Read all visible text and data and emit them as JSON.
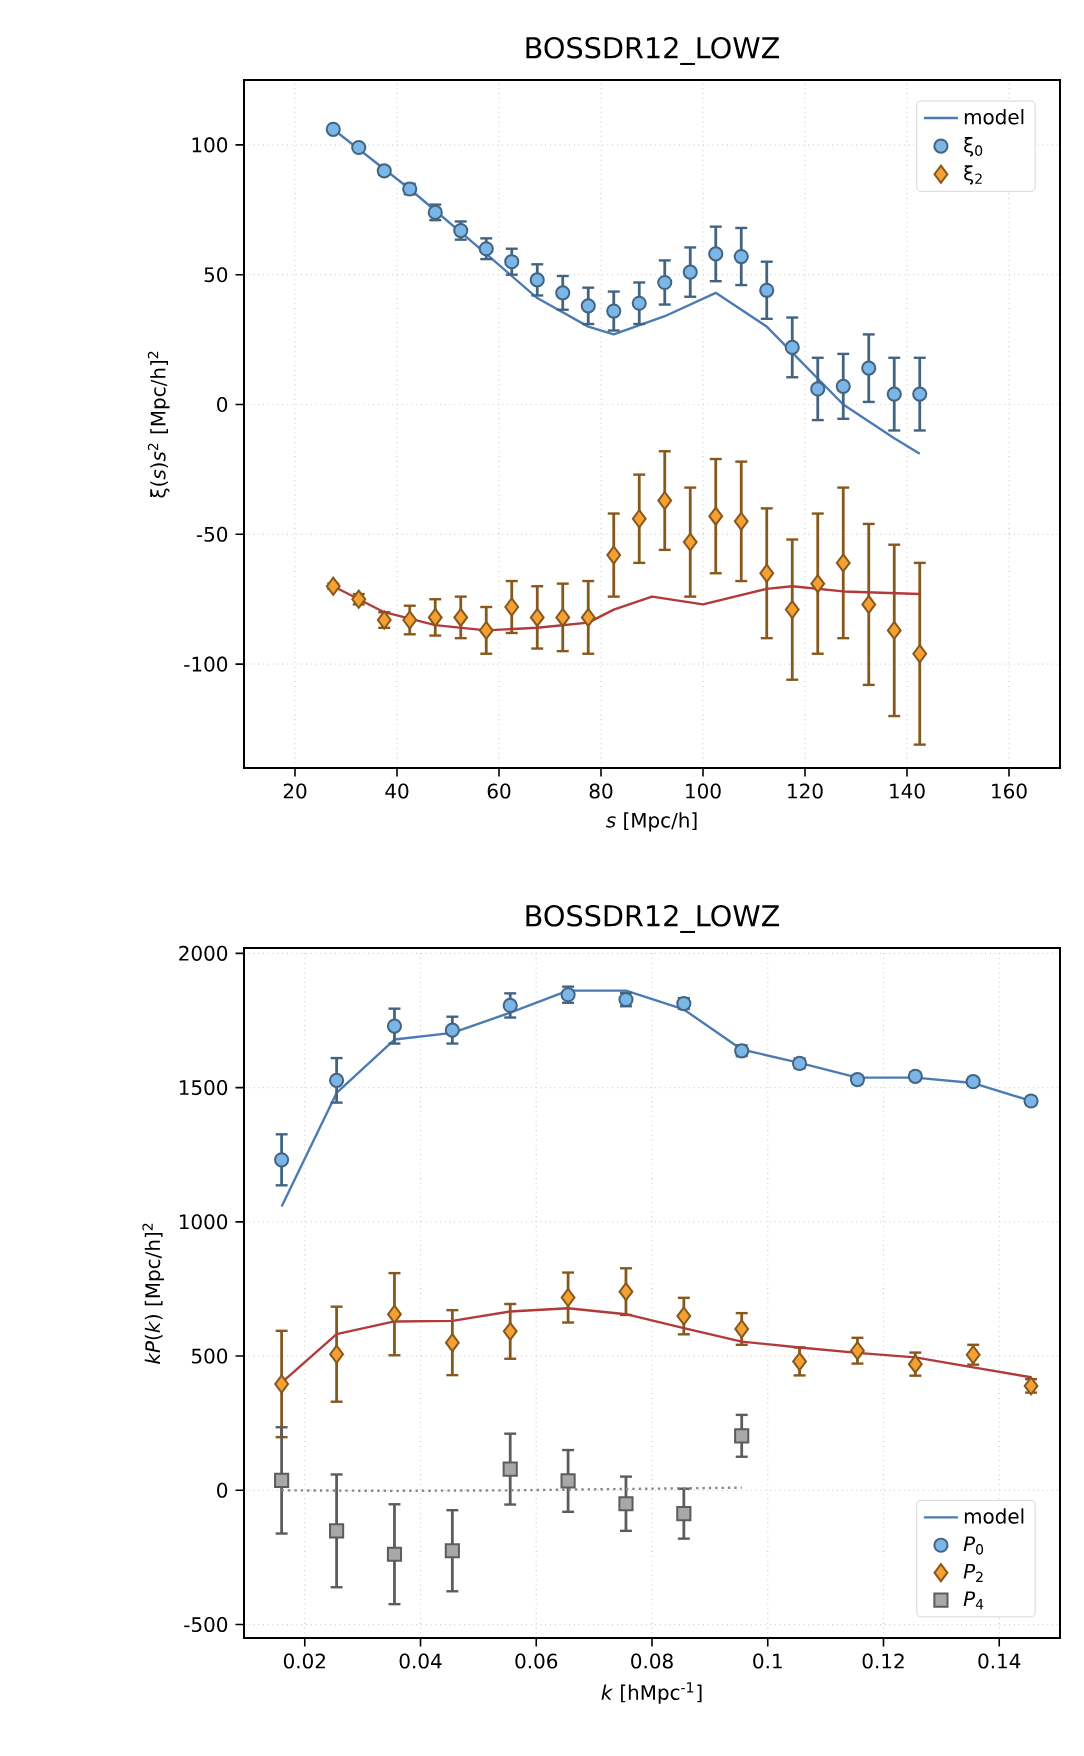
{
  "chart_data": [
    {
      "type": "scatter",
      "title": "BOSSDR12_LOWZ",
      "xlabel": "*s* [Mpc/h]",
      "ylabel": "ξ(*s*)*s*$^{2}$ [Mpc/h]$^{2}$",
      "xlim": [
        10,
        170
      ],
      "ylim": [
        -140,
        125
      ],
      "xticks": [
        20,
        40,
        60,
        80,
        100,
        120,
        140,
        160
      ],
      "yticks": [
        -100,
        -50,
        0,
        50,
        100
      ],
      "grid": true,
      "legend": "top right",
      "series": [
        {
          "name": "model",
          "type": "line",
          "color": "#4c7bb4",
          "line_style": "solid",
          "x": [
            27.5,
            42.5,
            57.5,
            67.5,
            77.5,
            82.5,
            92.5,
            102.5,
            112.5,
            117.5,
            127.5,
            137.5,
            142.5
          ],
          "values": [
            106,
            83,
            58,
            41,
            30,
            27,
            34,
            43,
            30,
            20,
            0,
            -13,
            -19
          ]
        },
        {
          "name": "ξ$_{0}$",
          "marker": "circle",
          "color": "#7ab6e8",
          "x": [
            27.5,
            32.5,
            37.5,
            42.5,
            47.5,
            52.5,
            57.5,
            62.5,
            67.5,
            72.5,
            77.5,
            82.5,
            87.5,
            92.5,
            97.5,
            102.5,
            107.5,
            112.5,
            117.5,
            122.5,
            127.5,
            132.5,
            137.5,
            142.5
          ],
          "values": [
            106,
            99,
            90,
            83,
            74,
            67,
            60,
            55,
            48,
            43,
            38,
            36,
            39,
            47,
            51,
            58,
            57,
            44,
            22,
            6,
            7,
            14,
            4,
            4
          ],
          "errors": [
            1,
            1,
            1.5,
            2,
            3,
            3.5,
            4,
            5,
            6,
            6.5,
            7,
            7.5,
            8,
            8.5,
            9.5,
            10.5,
            11,
            11,
            11.5,
            12,
            12.5,
            13,
            14,
            14
          ]
        },
        {
          "name": "ξ$_{2}$",
          "marker": "diamond",
          "color": "#f5a033",
          "x": [
            27.5,
            32.5,
            37.5,
            42.5,
            47.5,
            52.5,
            57.5,
            62.5,
            67.5,
            72.5,
            77.5,
            82.5,
            87.5,
            92.5,
            97.5,
            102.5,
            107.5,
            112.5,
            117.5,
            122.5,
            127.5,
            132.5,
            137.5,
            142.5
          ],
          "values": [
            -70,
            -75,
            -83,
            -83,
            -82,
            -82,
            -87,
            -78,
            -82,
            -82,
            -82,
            -58,
            -44,
            -37,
            -53,
            -43,
            -45,
            -65,
            -79,
            -69,
            -61,
            -77,
            -87,
            -96
          ],
          "errors": [
            1,
            2,
            3,
            5.5,
            7,
            8,
            9,
            10,
            12,
            13,
            14,
            16,
            17,
            19,
            21,
            22,
            23,
            25,
            27,
            27,
            29,
            31,
            33,
            35
          ]
        },
        {
          "type": "line",
          "color": "#b23a3a",
          "line_style": "solid",
          "x": [
            27.5,
            37.5,
            47.5,
            57.5,
            67.5,
            77.5,
            82.5,
            90,
            100,
            112.5,
            117.5,
            127.5,
            142.5
          ],
          "values": [
            -70,
            -80,
            -85,
            -87,
            -86,
            -84,
            -79,
            -74,
            -77,
            -71,
            -70,
            -72,
            -73
          ]
        }
      ]
    },
    {
      "type": "scatter",
      "title": "BOSSDR12_LOWZ",
      "xlabel": "*k* [hMpc$^{-1}$]",
      "ylabel": "*kP*(*k*) [Mpc/h]$^{2}$",
      "xlim": [
        0.0095,
        0.1505
      ],
      "ylim": [
        -550,
        2020
      ],
      "xticks": [
        0.02,
        0.04,
        0.06,
        0.08,
        0.1,
        0.12,
        0.14
      ],
      "yticks": [
        -500,
        0,
        500,
        1000,
        1500,
        2000
      ],
      "grid": true,
      "legend": "bottom right",
      "x": [
        0.016,
        0.0255,
        0.0355,
        0.0455,
        0.0555,
        0.0655,
        0.0755,
        0.0855,
        0.0955,
        0.1055,
        0.1155,
        0.1255,
        0.1355,
        0.1455
      ],
      "series": [
        {
          "name": "model",
          "type": "line",
          "color": "#4c7bb4",
          "line_style": "solid",
          "values": [
            1057,
            1480,
            1679,
            1704,
            1779,
            1861,
            1861,
            1791,
            1642,
            1592,
            1537,
            1537,
            1517,
            1450
          ]
        },
        {
          "name": "*P*$_{0}$",
          "marker": "circle",
          "color": "#7ab6e8",
          "values": [
            1231,
            1527,
            1729,
            1714,
            1806,
            1846,
            1828,
            1813,
            1637,
            1590,
            1530,
            1542,
            1522,
            1450
          ],
          "errors": [
            95,
            83,
            65,
            50,
            45,
            30,
            25,
            20,
            20,
            18,
            15,
            15,
            15,
            15
          ]
        },
        {
          "name": "*P*$_{2}$",
          "marker": "diamond",
          "color": "#f5a033",
          "values": [
            396,
            507,
            656,
            550,
            592,
            718,
            740,
            649,
            601,
            480,
            520,
            470,
            505,
            389
          ],
          "errors": [
            198,
            177,
            153,
            121,
            102,
            93,
            87,
            68,
            59,
            52,
            48,
            43,
            37,
            25
          ]
        },
        {
          "name": "*P*$_{4}$",
          "marker": "square",
          "color": "#a8a8a8",
          "x": [
            0.016,
            0.0255,
            0.0355,
            0.0455,
            0.0555,
            0.0655,
            0.0755,
            0.0855,
            0.0955
          ],
          "values": [
            37,
            -151,
            -238,
            -225,
            79,
            35,
            -50,
            -87,
            203
          ],
          "errors": [
            198,
            210,
            186,
            151,
            132,
            115,
            101,
            93,
            78
          ]
        },
        {
          "type": "line",
          "color": "#b23a3a",
          "line_style": "solid",
          "values": [
            401,
            582,
            629,
            631,
            666,
            678,
            656,
            604,
            554,
            532,
            512,
            495,
            458,
            421
          ]
        },
        {
          "type": "line",
          "color": "#888888",
          "line_style": "dotted",
          "x": [
            0.016,
            0.0355,
            0.0555,
            0.0755,
            0.0955
          ],
          "values": [
            0,
            -2,
            0,
            5,
            10
          ]
        }
      ]
    }
  ]
}
